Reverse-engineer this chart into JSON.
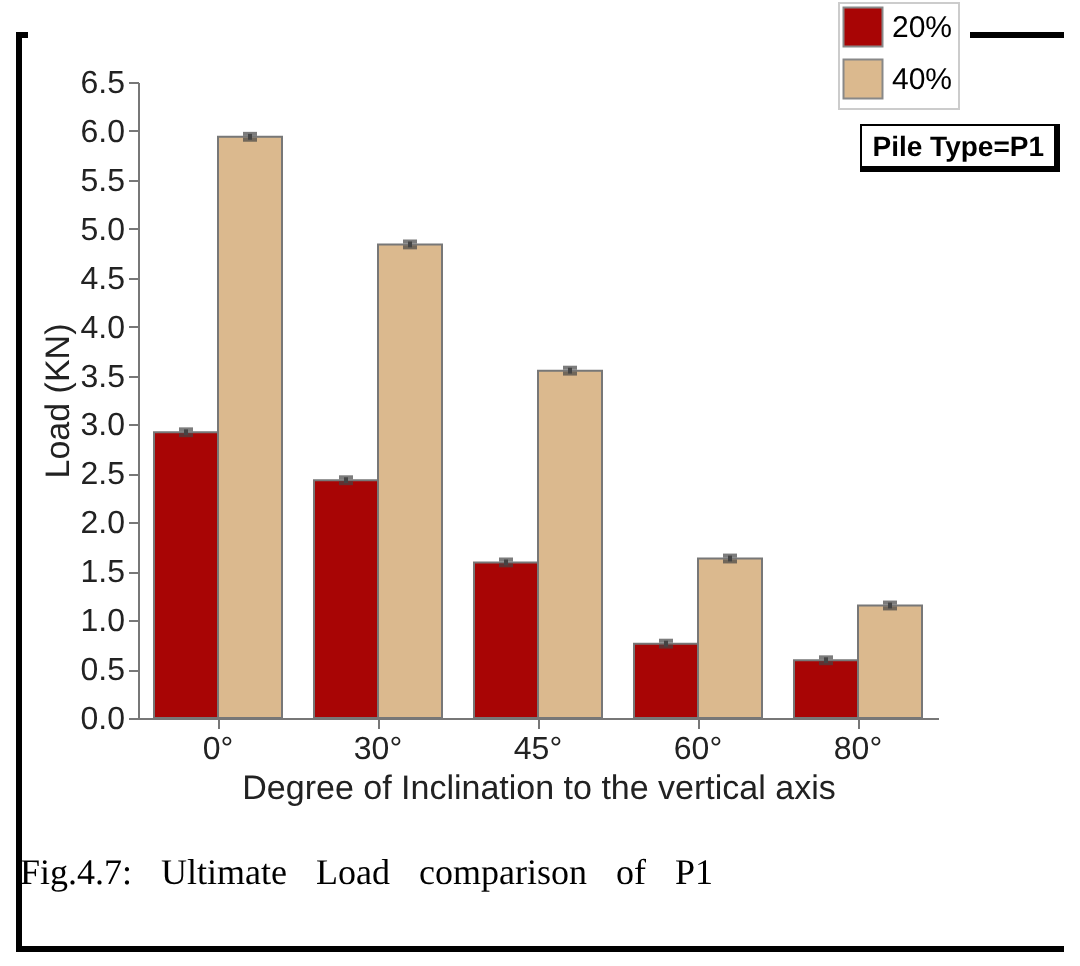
{
  "chart_data": {
    "type": "bar",
    "xlabel": "Degree of Inclination to the vertical axis",
    "ylabel": "Load (KN)",
    "categories": [
      "0°",
      "30°",
      "45°",
      "60°",
      "80°"
    ],
    "series": [
      {
        "name": "20%",
        "color": "#a80505",
        "values": [
          2.92,
          2.43,
          1.59,
          0.76,
          0.59
        ],
        "errors": [
          0.03,
          0.03,
          0.03,
          0.03,
          0.03
        ]
      },
      {
        "name": "40%",
        "color": "#dbb98e",
        "values": [
          5.94,
          4.84,
          3.55,
          1.63,
          1.15
        ],
        "errors": [
          0.03,
          0.03,
          0.03,
          0.03,
          0.03
        ]
      }
    ],
    "ylim": [
      0,
      6.5
    ],
    "yticks": [
      {
        "value": 0,
        "label": "0.0"
      },
      0.5,
      {
        "value": 1,
        "label": "1.0"
      },
      1.5,
      {
        "value": 2,
        "label": "2.0"
      },
      2.5,
      {
        "value": 3,
        "label": "3.0"
      },
      3.5,
      {
        "value": 4,
        "label": "4.0"
      },
      4.5,
      {
        "value": 5,
        "label": "5.0"
      },
      5.5,
      {
        "value": 6,
        "label": "6.0"
      },
      6.5
    ],
    "grid": false,
    "legend": "top right",
    "annotations": [
      "Pile Type=P1",
      "Fig.4.7: Ultimate Load comparison of P1"
    ]
  }
}
